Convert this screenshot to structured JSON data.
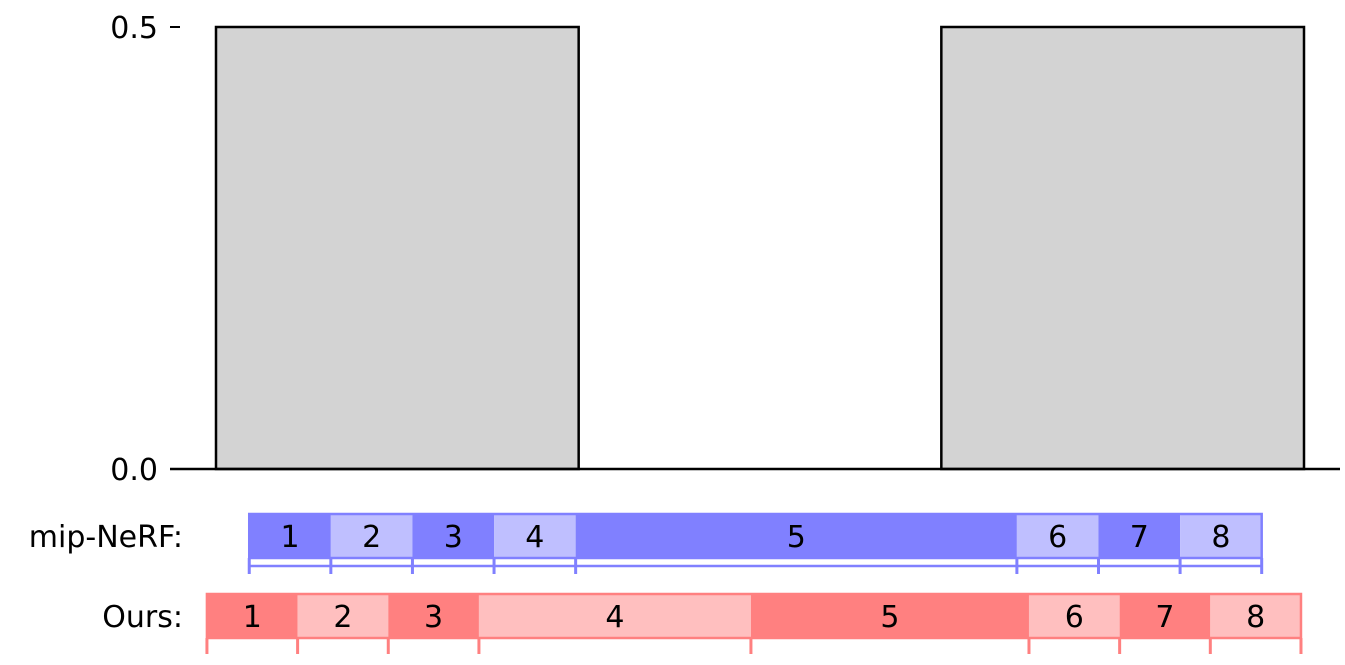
{
  "chart_data": {
    "type": "bar",
    "xlim": [
      0,
      1
    ],
    "ylim": [
      0,
      0.5
    ],
    "yticks": [
      {
        "value": 0.0,
        "label": "0.0"
      },
      {
        "value": 0.5,
        "label": "0.5"
      }
    ],
    "bars": [
      {
        "x0": 0.0,
        "x1": 0.3,
        "height": 0.5
      },
      {
        "x0": 0.6,
        "x1": 0.9,
        "height": 0.5
      }
    ],
    "bar_color": "#d3d3d3",
    "rows": [
      {
        "label": "mip-NeRF:",
        "dark": "#8080ff",
        "light": "#bfbfff",
        "tick_extent": "down",
        "segments": [
          {
            "label": "1",
            "x0": 0.0275,
            "x1": 0.095
          },
          {
            "label": "2",
            "x0": 0.095,
            "x1": 0.1625
          },
          {
            "label": "3",
            "x0": 0.1625,
            "x1": 0.23
          },
          {
            "label": "4",
            "x0": 0.23,
            "x1": 0.2975
          },
          {
            "label": "5",
            "x0": 0.2975,
            "x1": 0.6625
          },
          {
            "label": "6",
            "x0": 0.6625,
            "x1": 0.73
          },
          {
            "label": "7",
            "x0": 0.73,
            "x1": 0.7975
          },
          {
            "label": "8",
            "x0": 0.7975,
            "x1": 0.865
          }
        ]
      },
      {
        "label": "Ours:",
        "dark": "#ff8080",
        "light": "#ffbfbf",
        "tick_extent": "down",
        "segments": [
          {
            "label": "1",
            "x0": -0.0075,
            "x1": 0.0675
          },
          {
            "label": "2",
            "x0": 0.0675,
            "x1": 0.1425
          },
          {
            "label": "3",
            "x0": 0.1425,
            "x1": 0.2175
          },
          {
            "label": "4",
            "x0": 0.2175,
            "x1": 0.4425
          },
          {
            "label": "5",
            "x0": 0.4425,
            "x1": 0.6725
          },
          {
            "label": "6",
            "x0": 0.6725,
            "x1": 0.7475
          },
          {
            "label": "7",
            "x0": 0.7475,
            "x1": 0.8225
          },
          {
            "label": "8",
            "x0": 0.8225,
            "x1": 0.8975
          }
        ]
      }
    ]
  }
}
